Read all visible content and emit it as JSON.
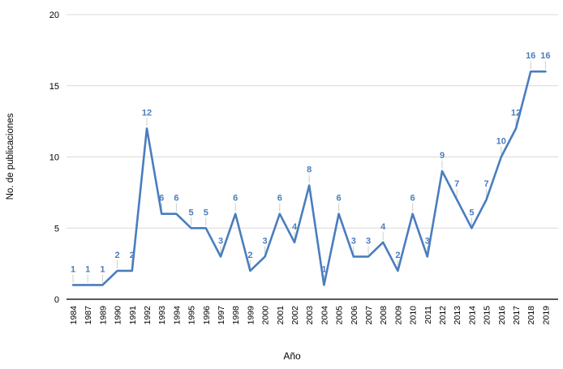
{
  "chart_data": {
    "type": "line",
    "title": "",
    "xlabel": "Año",
    "ylabel": "No. de publicaciones",
    "x": [
      "1984",
      "1987",
      "1989",
      "1990",
      "1991",
      "1992",
      "1993",
      "1994",
      "1995",
      "1996",
      "1997",
      "1998",
      "1999",
      "2000",
      "2001",
      "2002",
      "2003",
      "2004",
      "2005",
      "2006",
      "2007",
      "2008",
      "2009",
      "2010",
      "2011",
      "2012",
      "2013",
      "2014",
      "2015",
      "2016",
      "2017",
      "2018",
      "2019"
    ],
    "series": [
      {
        "name": "No. de publicaciones",
        "values": [
          1,
          1,
          1,
          2,
          2,
          12,
          6,
          6,
          5,
          5,
          3,
          6,
          2,
          3,
          6,
          4,
          8,
          1,
          6,
          3,
          3,
          4,
          2,
          6,
          3,
          9,
          7,
          5,
          7,
          10,
          12,
          16,
          16
        ]
      }
    ],
    "ylim": [
      0,
      20
    ],
    "yticks": [
      0,
      5,
      10,
      15,
      20
    ],
    "grid": "horizontal",
    "legend": "none",
    "data_labels": true,
    "colors": {
      "line": "#4a7dbe",
      "data_label": "#4a7dbe",
      "gridline": "#d9d9d9",
      "axis_line": "#212121",
      "leader_line": "#cccccc",
      "text": "#000000",
      "background": "#ffffff"
    }
  }
}
